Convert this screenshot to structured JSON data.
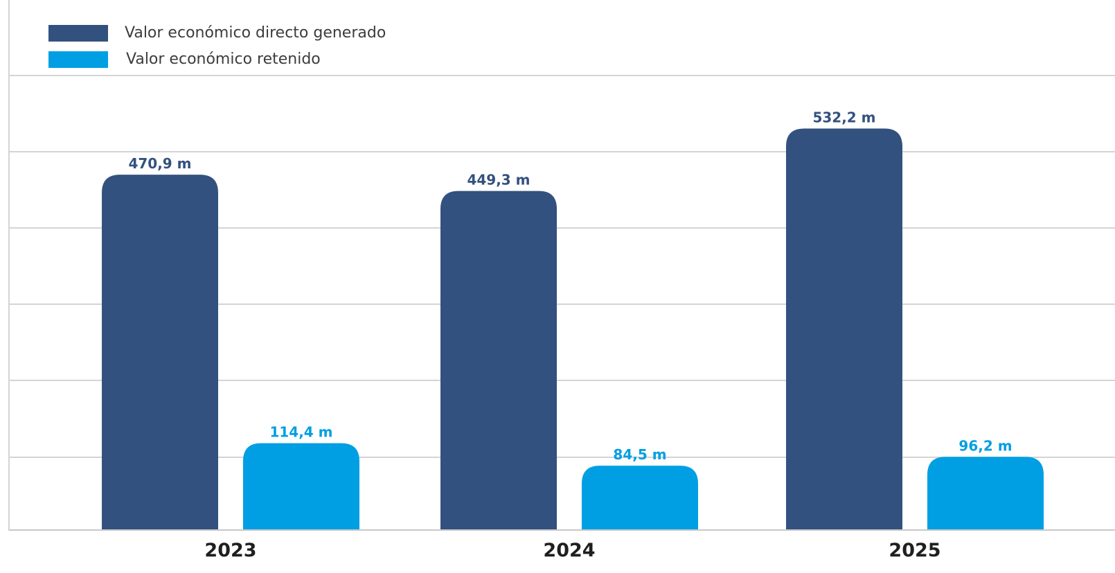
{
  "chart_data": {
    "type": "bar",
    "categories": [
      "2023",
      "2024",
      "2025"
    ],
    "series": [
      {
        "name": "Valor económico directo generado",
        "values": [
          470.9,
          449.3,
          532.2
        ],
        "labels": [
          "470,9 m",
          "449,3 m",
          "532,2 m"
        ],
        "color": "#33517f"
      },
      {
        "name": "Valor económico retenido",
        "values": [
          114.4,
          84.5,
          96.2
        ],
        "labels": [
          "114,4 m",
          "84,5 m",
          "96,2 m"
        ],
        "color": "#009fe3"
      }
    ],
    "grid": true,
    "legend": "top-left",
    "xlabel": "",
    "ylabel": ""
  }
}
